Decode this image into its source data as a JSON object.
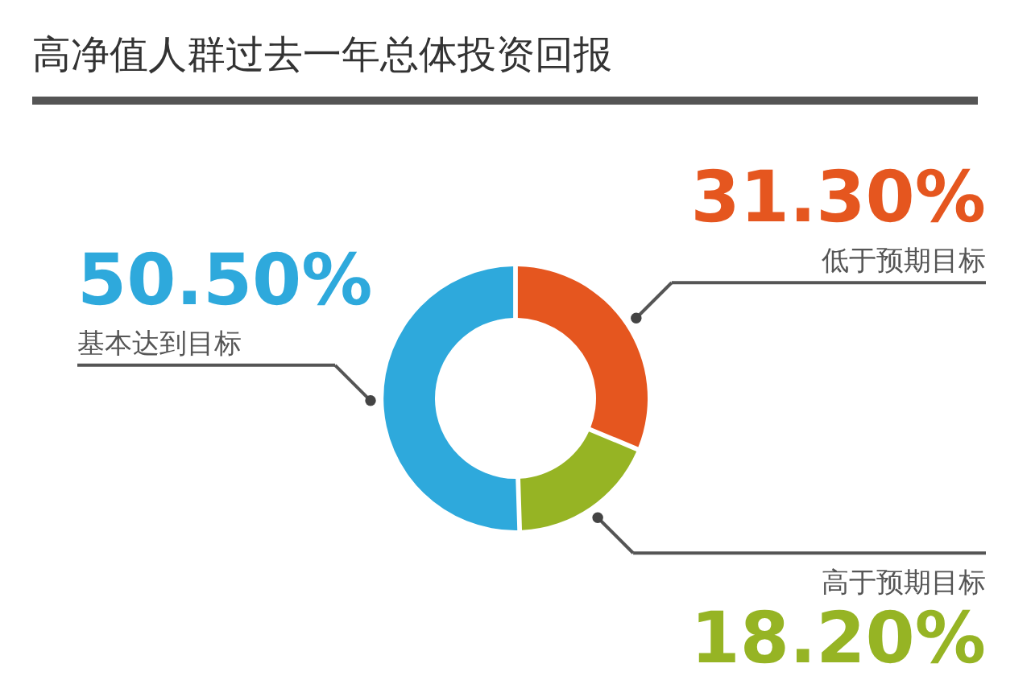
{
  "chart_data": {
    "type": "donut",
    "title": "高净值人群过去一年总体投资回报",
    "categories": [
      "低于预期目标",
      "高于预期目标",
      "基本达到目标"
    ],
    "values": [
      31.3,
      18.2,
      50.5
    ],
    "colors": [
      "#e5561f",
      "#96b424",
      "#2ea9dc"
    ],
    "value_labels": [
      "31.30%",
      "18.20%",
      "50.50%"
    ],
    "legend": false
  }
}
